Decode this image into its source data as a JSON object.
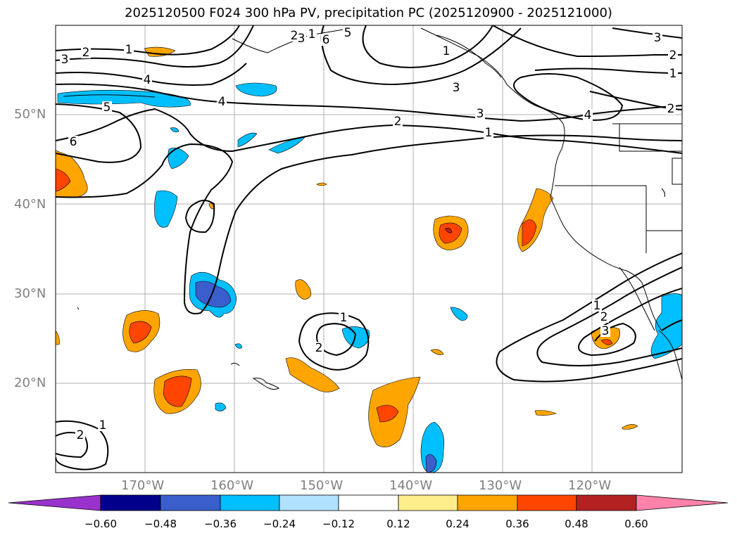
{
  "title": "2025120500 F024 300 hPa PV, precipitation PC (2025120900 - 2025121000)",
  "map": {
    "lat_labels": [
      "50°N",
      "40°N",
      "30°N",
      "20°N"
    ],
    "lon_labels": [
      "170°W",
      "160°W",
      "150°W",
      "140°W",
      "130°W",
      "120°W"
    ],
    "contour_labels": [
      "1",
      "2",
      "3",
      "4",
      "5",
      "6",
      "1",
      "2",
      "3",
      "4",
      "5",
      "6",
      "1",
      "3",
      "1",
      "2",
      "3",
      "4",
      "3",
      "2",
      "1",
      "2",
      "1",
      "2",
      "3",
      "1",
      "2",
      "1",
      "2"
    ]
  },
  "colorbar": {
    "ticks": [
      "−0.60",
      "−0.48",
      "−0.36",
      "−0.24",
      "−0.12",
      "0.12",
      "0.24",
      "0.36",
      "0.48",
      "0.60"
    ],
    "colors": [
      "#9932cc",
      "#00008b",
      "#3a5fcd",
      "#00bfff",
      "#b0e2ff",
      "#ffffff",
      "#ffec8b",
      "#ffa500",
      "#ff4500",
      "#b22222",
      "#ff82ab"
    ]
  }
}
